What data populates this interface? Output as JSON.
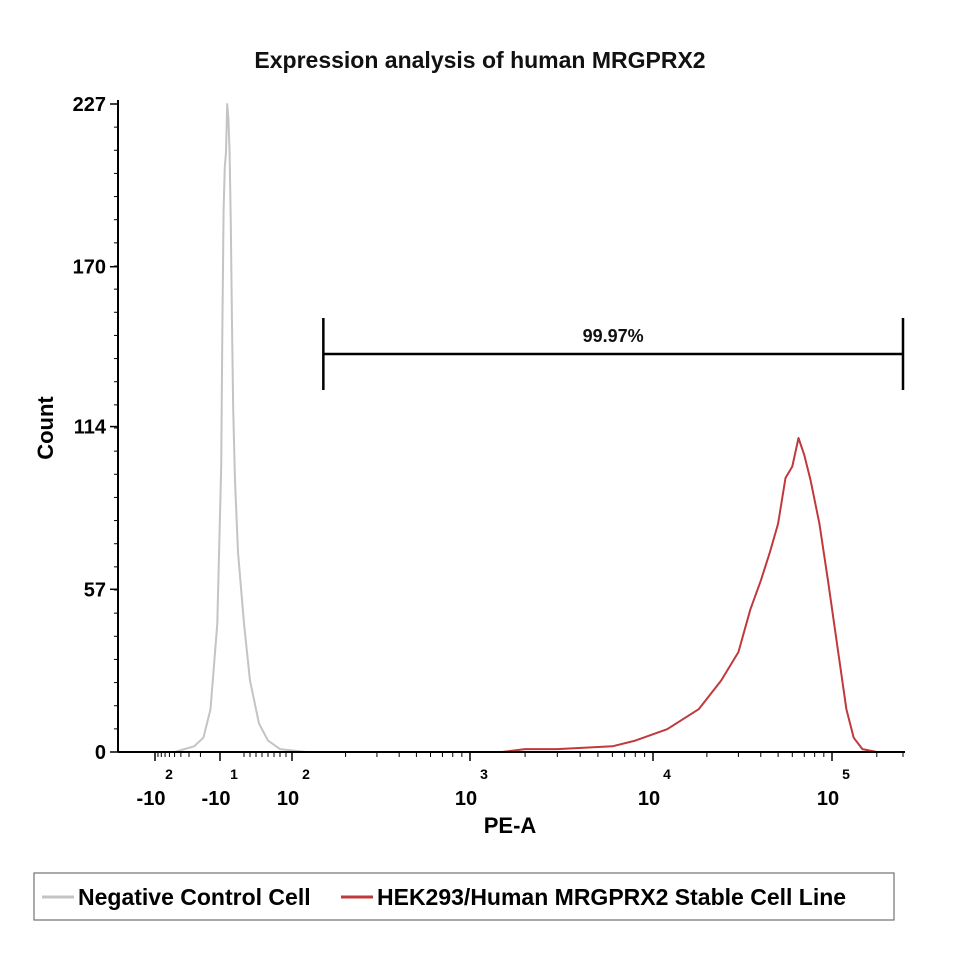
{
  "chart_data": {
    "type": "line",
    "title": "Expression analysis of human MRGPRX2",
    "xlabel": "PE-A",
    "ylabel": "Count",
    "x_scale": "biexponential",
    "ylim": [
      0,
      227
    ],
    "y_ticks": [
      "0",
      "57",
      "114",
      "170",
      "227"
    ],
    "x_ticks": [
      {
        "base": "-10",
        "exp": "2",
        "value": -100
      },
      {
        "base": "-10",
        "exp": "1",
        "value": -10
      },
      {
        "base": "10",
        "exp": "2",
        "value": 100
      },
      {
        "base": "10",
        "exp": "3",
        "value": 1000
      },
      {
        "base": "10",
        "exp": "4",
        "value": 10000
      },
      {
        "base": "10",
        "exp": "5",
        "value": 100000
      }
    ],
    "gate": {
      "label": "99.97%",
      "x_start": 150,
      "x_end": 300000
    },
    "legend_position": "bottom",
    "series": [
      {
        "name": "Negative Control Cell",
        "color": "#c4c4c4",
        "points": [
          [
            -150,
            0
          ],
          [
            -50,
            0
          ],
          [
            -25,
            2
          ],
          [
            -18,
            5
          ],
          [
            -14,
            15
          ],
          [
            -11,
            45
          ],
          [
            -9,
            100
          ],
          [
            -8,
            150
          ],
          [
            -7,
            190
          ],
          [
            -6,
            205
          ],
          [
            -5,
            210
          ],
          [
            -4,
            227
          ],
          [
            -3,
            222
          ],
          [
            -2,
            210
          ],
          [
            -1,
            185
          ],
          [
            0,
            150
          ],
          [
            2,
            120
          ],
          [
            5,
            95
          ],
          [
            10,
            70
          ],
          [
            20,
            45
          ],
          [
            30,
            25
          ],
          [
            45,
            10
          ],
          [
            60,
            4
          ],
          [
            80,
            1
          ],
          [
            120,
            0
          ]
        ]
      },
      {
        "name": "HEK293/Human MRGPRX2 Stable Cell Line",
        "color": "#c0393b",
        "points": [
          [
            150,
            0
          ],
          [
            500,
            0
          ],
          [
            1500,
            0
          ],
          [
            2000,
            1
          ],
          [
            3000,
            1
          ],
          [
            6000,
            2
          ],
          [
            8000,
            4
          ],
          [
            12000,
            8
          ],
          [
            18000,
            15
          ],
          [
            24000,
            25
          ],
          [
            30000,
            35
          ],
          [
            35000,
            50
          ],
          [
            40000,
            60
          ],
          [
            45000,
            70
          ],
          [
            50000,
            80
          ],
          [
            55000,
            96
          ],
          [
            60000,
            100
          ],
          [
            65000,
            110
          ],
          [
            70000,
            104
          ],
          [
            76000,
            95
          ],
          [
            85000,
            80
          ],
          [
            95000,
            60
          ],
          [
            110000,
            35
          ],
          [
            125000,
            15
          ],
          [
            140000,
            5
          ],
          [
            160000,
            1
          ],
          [
            200000,
            0
          ]
        ]
      }
    ]
  }
}
